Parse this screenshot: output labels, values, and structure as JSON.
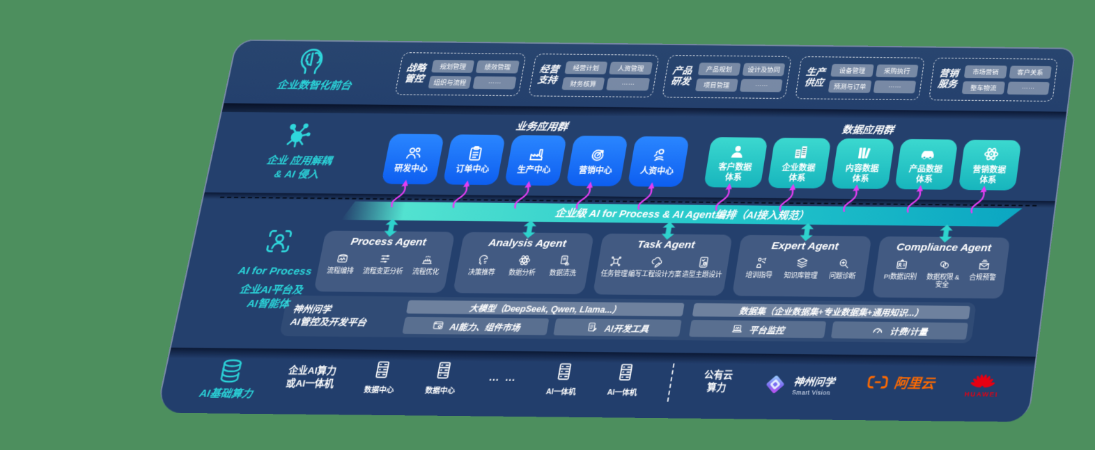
{
  "background_color": "#4d8f5e",
  "panel_color": "#24406d",
  "colors": {
    "teal_accent": "#2bd4d9",
    "blue_card": "#1b74f5",
    "teal_card": "#25c3c4",
    "bar_start": "#52e2d0",
    "bar_end": "#0ba6c2",
    "magenta_arrow": "#e23df2",
    "slate_box": "#46536d",
    "aliyun_orange": "#ff6a00",
    "huawei_red": "#e60012"
  },
  "frontend": {
    "label": "企业数智化前台",
    "icon": "brain-head-icon",
    "groups": [
      {
        "title": "战略\n管控",
        "pills": [
          "规划管理",
          "绩效管理",
          "组织与流程",
          "……"
        ]
      },
      {
        "title": "经营\n支持",
        "pills": [
          "经营计划",
          "人资管理",
          "财务核算",
          "……"
        ]
      },
      {
        "title": "产品\n研发",
        "pills": [
          "产品规划",
          "设计及协同",
          "项目管理",
          "……"
        ]
      },
      {
        "title": "生产\n供应",
        "pills": [
          "设备管理",
          "采购执行",
          "预测与订单",
          "……"
        ]
      },
      {
        "title": "营销\n服务",
        "pills": [
          "市场营销",
          "客户关系",
          "整车物流",
          "……"
        ]
      }
    ]
  },
  "decouple": {
    "label": "企业 应用解耦\n& AI 侵入",
    "icon": "molecule-icon",
    "business_title": "业务应用群",
    "data_title": "数据应用群",
    "business_apps": [
      {
        "label": "研发中心",
        "icon": "team-icon"
      },
      {
        "label": "订单中心",
        "icon": "clipboard-icon"
      },
      {
        "label": "生产中心",
        "icon": "factory-icon"
      },
      {
        "label": "营销中心",
        "icon": "target-icon"
      },
      {
        "label": "人资中心",
        "icon": "people-activity-icon"
      }
    ],
    "data_apps": [
      {
        "label": "客户数据\n体系",
        "icon": "customer-icon"
      },
      {
        "label": "企业数据\n体系",
        "icon": "building-icon"
      },
      {
        "label": "内容数据\n体系",
        "icon": "books-icon"
      },
      {
        "label": "产品数据\n体系",
        "icon": "car-icon"
      },
      {
        "label": "营销数据\n体系",
        "icon": "atom-icon"
      }
    ]
  },
  "ai_bar": {
    "label": "企业级 AI for Process & AI Agent编排（AI接入规范）"
  },
  "ai_layer": {
    "label_en": "AI for Process",
    "label_cn": "企业AI平台及\nAI智能体",
    "icon": "scan-person-icon",
    "agents": [
      {
        "title": "Process Agent",
        "items": [
          {
            "label": "流程编排",
            "icon": "monitor-wave-icon"
          },
          {
            "label": "流程变更分析",
            "icon": "sliders-icon"
          },
          {
            "label": "流程优化",
            "icon": "stage-icon"
          }
        ]
      },
      {
        "title": "Analysis Agent",
        "items": [
          {
            "label": "决策推荐",
            "icon": "head-idea-icon"
          },
          {
            "label": "数据分析",
            "icon": "atom-icon"
          },
          {
            "label": "数据清洗",
            "icon": "doc-clean-icon"
          }
        ]
      },
      {
        "title": "Task Agent",
        "items": [
          {
            "label": "任务管理",
            "icon": "task-grid-icon"
          },
          {
            "label": "编写工程设计方案",
            "icon": "cloud-pen-icon"
          },
          {
            "label": "造型主题设计",
            "icon": "tablet-check-icon"
          }
        ]
      },
      {
        "title": "Expert Agent",
        "items": [
          {
            "label": "培训指导",
            "icon": "training-icon"
          },
          {
            "label": "知识库管理",
            "icon": "layers-icon"
          },
          {
            "label": "问题诊断",
            "icon": "diagnose-icon"
          }
        ]
      },
      {
        "title": "Compliance Agent",
        "items": [
          {
            "label": "PI数据识别",
            "icon": "idcard-icon"
          },
          {
            "label": "数据权限 &\n安全",
            "icon": "rings-icon"
          },
          {
            "label": "合规预警",
            "icon": "mail-alert-icon"
          }
        ]
      }
    ]
  },
  "platform": {
    "title": "神州问学\nAI管控及开发平台",
    "model_bar": "大模型（DeepSeek, Qwen, Llama...）",
    "dataset_bar": "数据集（企业数据集+专业数据集+通用知识...）",
    "left_tools": [
      {
        "label": "AI能力、组件市场",
        "icon": "window-gear-icon"
      },
      {
        "label": "AI开发工具",
        "icon": "doc-pencil-icon"
      }
    ],
    "right_tools": [
      {
        "label": "平台监控",
        "icon": "laptop-icon"
      },
      {
        "label": "计费/计量",
        "icon": "gauge-icon"
      }
    ]
  },
  "infra": {
    "label": "AI基础算力",
    "icon": "database-icon",
    "compute_text": "企业AI算力\n或AI一体机",
    "dots": "… …",
    "nodes": [
      {
        "label": "数据中心",
        "icon": "server-icon"
      },
      {
        "label": "数据中心",
        "icon": "server-icon"
      },
      {
        "label": "AI一体机",
        "icon": "server-icon"
      },
      {
        "label": "AI一体机",
        "icon": "server-icon"
      }
    ],
    "public_cloud": "公有云\n算力",
    "logos": {
      "smartvision_cn": "神州问学",
      "smartvision_en": "Smart Vision",
      "aliyun": "阿里云",
      "huawei": "HUAWEI"
    }
  }
}
